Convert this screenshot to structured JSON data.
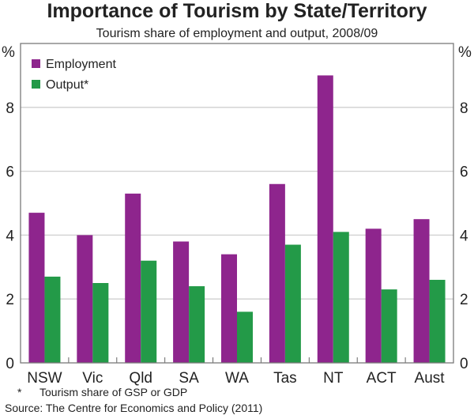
{
  "chart_data": {
    "type": "bar",
    "title": "Importance of Tourism by State/Territory",
    "subtitle": "Tourism share of employment and output, 2008/09",
    "ylabel_left": "%",
    "ylabel_right": "%",
    "ylim": [
      0,
      10
    ],
    "yticks": [
      0,
      2,
      4,
      6,
      8
    ],
    "grid": true,
    "legend_placement": "top-left",
    "categories": [
      "NSW",
      "Vic",
      "Qld",
      "SA",
      "WA",
      "Tas",
      "NT",
      "ACT",
      "Aust"
    ],
    "series": [
      {
        "name": "Employment",
        "color": "#8e258d",
        "values": [
          4.7,
          4.0,
          5.3,
          3.8,
          3.4,
          5.6,
          9.0,
          4.2,
          4.5
        ]
      },
      {
        "name": "Output*",
        "color": "#239a48",
        "values": [
          2.7,
          2.5,
          3.2,
          2.4,
          1.6,
          3.7,
          4.1,
          2.3,
          2.6
        ]
      }
    ]
  },
  "notes": {
    "footnote_marker": "*",
    "footnote": "Tourism share of GSP or GDP",
    "source": "Source: The Centre for Economics and Policy (2011)"
  }
}
